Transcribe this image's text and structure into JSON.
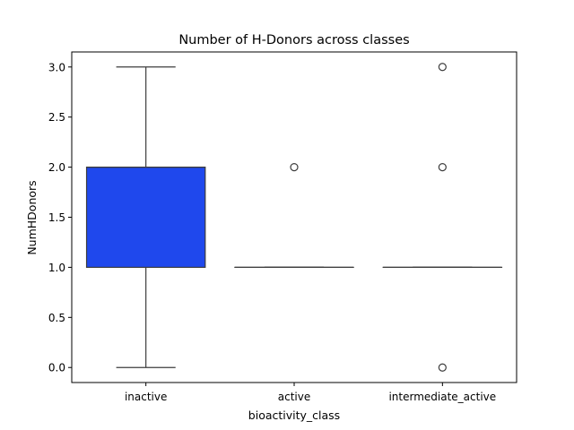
{
  "chart_data": {
    "type": "box",
    "title": "Number of H-Donors across classes",
    "xlabel": "bioactivity_class",
    "ylabel": "NumHDonors",
    "ylim": [
      -0.15,
      3.15
    ],
    "yticks": [
      0.0,
      0.5,
      1.0,
      1.5,
      2.0,
      2.5,
      3.0
    ],
    "ytick_labels": [
      "0.0",
      "0.5",
      "1.0",
      "1.5",
      "2.0",
      "2.5",
      "3.0"
    ],
    "grid": false,
    "legend": "none",
    "categories": [
      "inactive",
      "active",
      "intermediate_active"
    ],
    "boxes": [
      {
        "category": "inactive",
        "whisker_low": 0.0,
        "q1": 1.0,
        "median": 2.0,
        "q3": 2.0,
        "whisker_high": 3.0,
        "outliers": [],
        "color": "#1f48ed"
      },
      {
        "category": "active",
        "whisker_low": 1.0,
        "q1": 1.0,
        "median": 1.0,
        "q3": 1.0,
        "whisker_high": 1.0,
        "outliers": [
          2.0
        ],
        "color": "#1f48ed"
      },
      {
        "category": "intermediate_active",
        "whisker_low": 1.0,
        "q1": 1.0,
        "median": 1.0,
        "q3": 1.0,
        "whisker_high": 1.0,
        "outliers": [
          3.0,
          2.0,
          0.0
        ],
        "color": "#1f48ed"
      }
    ]
  }
}
